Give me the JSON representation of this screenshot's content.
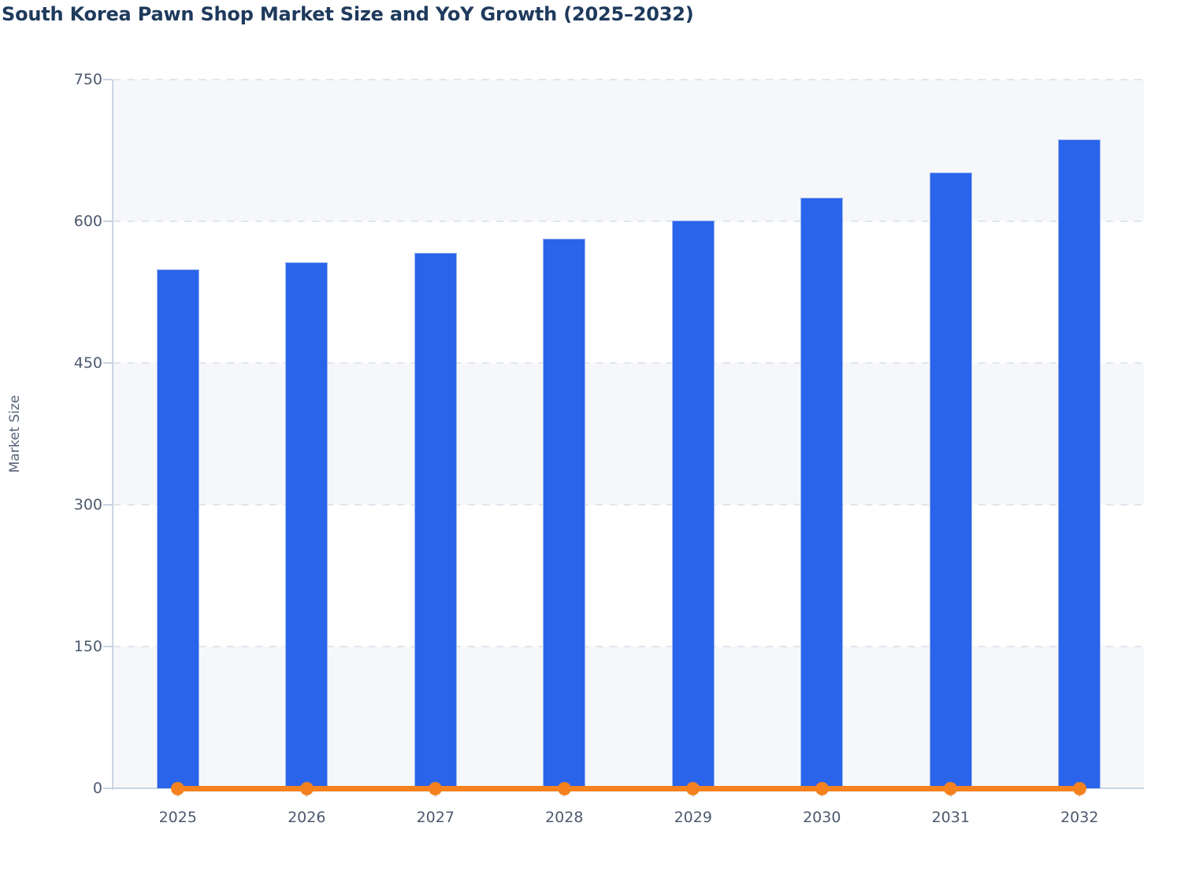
{
  "title": "South Korea Pawn Shop Market Size and YoY Growth (2025–2032)",
  "ylabel": "Market Size",
  "colors": {
    "title": "#1e3a5c",
    "axis_title": "#57637a",
    "tick_label": "#4d5a6e",
    "bar": "#2a64ea",
    "bar_border": "#9db7f0",
    "line": "#f5821f",
    "band": "#f5f7fa",
    "band_alt": "#ffffff",
    "grid": "#e2e5ec",
    "axis_line": "#ccd4e2"
  },
  "chart_data": {
    "type": "bar",
    "title": "South Korea Pawn Shop Market Size and YoY Growth (2025–2032)",
    "categories": [
      "2025",
      "2026",
      "2027",
      "2028",
      "2029",
      "2030",
      "2031",
      "2032"
    ],
    "series": [
      {
        "name": "Market Size",
        "type": "bar",
        "values": [
          549,
          557,
          567,
          582,
          601,
          625,
          652,
          687
        ]
      },
      {
        "name": "YoY Growth",
        "type": "line",
        "values": [
          0,
          0,
          0,
          0,
          0,
          0,
          0,
          0
        ],
        "note": "line renders flat along the zero baseline of the primary axis with a circular marker at every year"
      }
    ],
    "xlabel": "",
    "ylabel": "Market Size",
    "ylim": [
      0,
      750
    ],
    "yticks": [
      0,
      150,
      300,
      450,
      600,
      750
    ],
    "grid": "horizontal dashed gridlines at each y tick",
    "plot_background": "alternating horizontal bands (gray/white) between gridlines",
    "legend_position": "none"
  }
}
